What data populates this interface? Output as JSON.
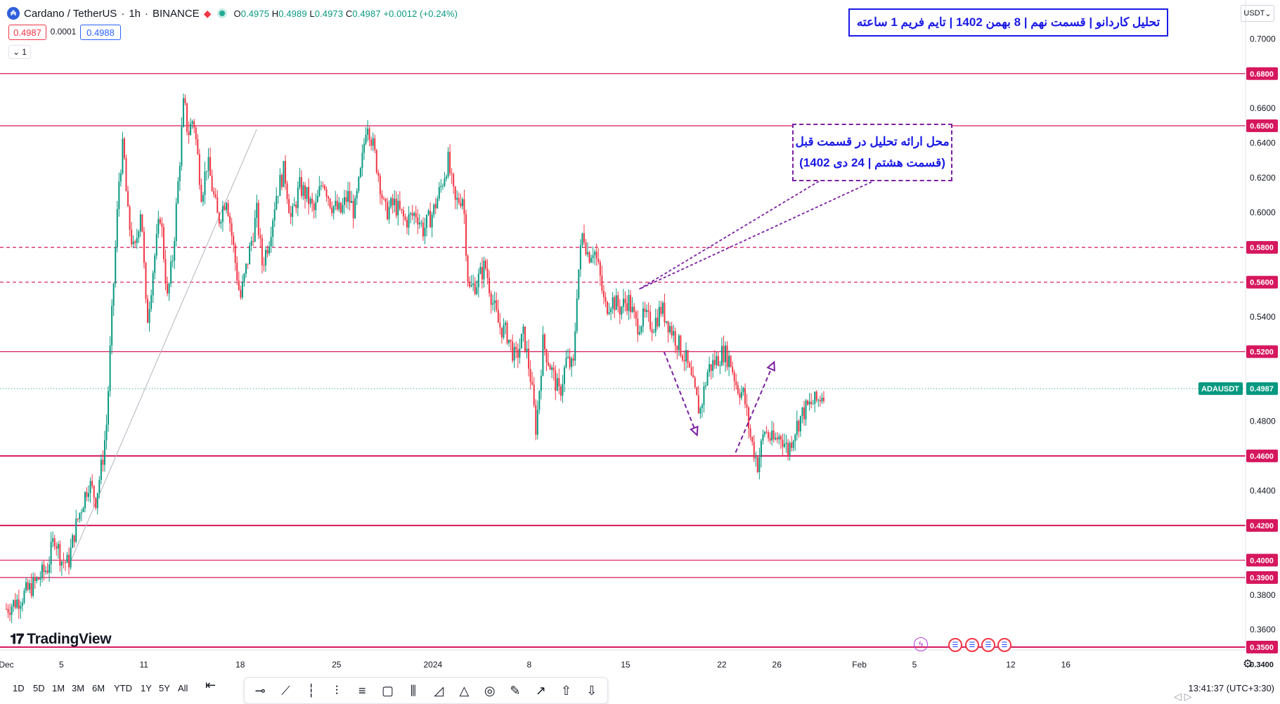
{
  "header": {
    "symbol": "Cardano / TetherUS",
    "interval": "1h",
    "exchange": "BINANCE",
    "o_label": "O",
    "o_value": "0.4975",
    "h_label": "H",
    "h_value": "0.4989",
    "l_label": "L",
    "l_value": "0.4973",
    "c_label": "C",
    "c_value": "0.4987",
    "change": "+0.0012 (+0.24%)",
    "sell_price": "0.4987",
    "spread": "0.0001",
    "buy_price": "0.4988",
    "indicators_count": "1",
    "currency": "USDT"
  },
  "annotations": {
    "title": "تحلیل کاردانو | قسمت نهم | 8 بهمن 1402 | تایم فریم 1 ساعته",
    "note_line1": "محل ارائه تحلیل در قسمت قبل",
    "note_line2": "(قسمت هشتم | 24 دی 1402)"
  },
  "branding": {
    "logo": "TradingView"
  },
  "chart_data": {
    "type": "candlestick",
    "symbol_label": "ADAUSDT",
    "last_price": "0.4987",
    "ylim": [
      0.34,
      0.705
    ],
    "y_ticks": [
      "0.7000",
      "0.6600",
      "0.6400",
      "0.6200",
      "0.6000",
      "0.5400",
      "0.4800",
      "0.4400",
      "0.3800",
      "0.3600"
    ],
    "x_ticks": [
      "Dec",
      "5",
      "11",
      "18",
      "25",
      "2024",
      "8",
      "15",
      "22",
      "26",
      "Feb",
      "5",
      "12",
      "16"
    ],
    "x_tick_days": [
      1,
      5,
      11,
      18,
      25,
      32,
      39,
      46,
      53,
      57,
      63,
      67,
      74,
      78
    ],
    "xlim_days": [
      1,
      82
    ],
    "levels": [
      {
        "price": 0.68,
        "label": "0.6800",
        "style": "solid"
      },
      {
        "price": 0.65,
        "label": "0.6500",
        "style": "solid"
      },
      {
        "price": 0.58,
        "label": "0.5800",
        "style": "dashed"
      },
      {
        "price": 0.56,
        "label": "0.5600",
        "style": "dashed"
      },
      {
        "price": 0.52,
        "label": "0.5200",
        "style": "solid"
      },
      {
        "price": 0.46,
        "label": "0.4600",
        "style": "solid-thick"
      },
      {
        "price": 0.42,
        "label": "0.4200",
        "style": "solid-thick"
      },
      {
        "price": 0.4,
        "label": "0.4000",
        "style": "solid"
      },
      {
        "price": 0.39,
        "label": "0.3900",
        "style": "solid"
      },
      {
        "price": 0.35,
        "label": "0.3500",
        "style": "solid-thick"
      },
      {
        "price": 0.34,
        "label": "0.3400",
        "style": "none"
      }
    ],
    "price_path": [
      [
        1,
        0.372
      ],
      [
        2,
        0.378
      ],
      [
        3,
        0.386
      ],
      [
        4,
        0.396
      ],
      [
        4.5,
        0.414
      ],
      [
        5,
        0.4
      ],
      [
        5.5,
        0.398
      ],
      [
        6,
        0.418
      ],
      [
        6.5,
        0.432
      ],
      [
        7,
        0.445
      ],
      [
        7.5,
        0.435
      ],
      [
        8,
        0.458
      ],
      [
        8.3,
        0.48
      ],
      [
        8.6,
        0.53
      ],
      [
        8.9,
        0.575
      ],
      [
        9.2,
        0.62
      ],
      [
        9.5,
        0.64
      ],
      [
        9.8,
        0.6
      ],
      [
        10.3,
        0.575
      ],
      [
        10.8,
        0.605
      ],
      [
        11.2,
        0.535
      ],
      [
        11.7,
        0.57
      ],
      [
        12.2,
        0.6
      ],
      [
        12.7,
        0.55
      ],
      [
        13.1,
        0.575
      ],
      [
        13.6,
        0.63
      ],
      [
        13.9,
        0.665
      ],
      [
        14.2,
        0.645
      ],
      [
        14.6,
        0.655
      ],
      [
        15.2,
        0.61
      ],
      [
        15.6,
        0.63
      ],
      [
        16.4,
        0.595
      ],
      [
        17,
        0.61
      ],
      [
        17.5,
        0.58
      ],
      [
        18,
        0.55
      ],
      [
        18.6,
        0.575
      ],
      [
        19.2,
        0.6
      ],
      [
        19.6,
        0.57
      ],
      [
        20.1,
        0.585
      ],
      [
        20.6,
        0.61
      ],
      [
        21.2,
        0.625
      ],
      [
        21.7,
        0.595
      ],
      [
        22.3,
        0.615
      ],
      [
        22.8,
        0.61
      ],
      [
        23.4,
        0.6
      ],
      [
        24,
        0.62
      ],
      [
        24.6,
        0.605
      ],
      [
        25.3,
        0.6
      ],
      [
        25.8,
        0.61
      ],
      [
        26.3,
        0.6
      ],
      [
        26.8,
        0.625
      ],
      [
        27.2,
        0.655
      ],
      [
        27.6,
        0.64
      ],
      [
        28.1,
        0.62
      ],
      [
        28.5,
        0.6
      ],
      [
        29.2,
        0.605
      ],
      [
        30,
        0.595
      ],
      [
        30.8,
        0.6
      ],
      [
        31.3,
        0.59
      ],
      [
        32,
        0.6
      ],
      [
        32.6,
        0.615
      ],
      [
        33.1,
        0.63
      ],
      [
        33.6,
        0.605
      ],
      [
        34.2,
        0.61
      ],
      [
        34.6,
        0.555
      ],
      [
        35.2,
        0.56
      ],
      [
        35.8,
        0.57
      ],
      [
        36.3,
        0.55
      ],
      [
        36.8,
        0.535
      ],
      [
        37.4,
        0.53
      ],
      [
        38,
        0.515
      ],
      [
        38.6,
        0.53
      ],
      [
        39.1,
        0.505
      ],
      [
        39.5,
        0.475
      ],
      [
        40,
        0.525
      ],
      [
        40.6,
        0.51
      ],
      [
        41.2,
        0.495
      ],
      [
        41.7,
        0.515
      ],
      [
        42.2,
        0.51
      ],
      [
        42.5,
        0.56
      ],
      [
        42.9,
        0.59
      ],
      [
        43.3,
        0.575
      ],
      [
        43.7,
        0.58
      ],
      [
        44.1,
        0.565
      ],
      [
        44.5,
        0.545
      ],
      [
        45,
        0.55
      ],
      [
        45.6,
        0.545
      ],
      [
        46.2,
        0.55
      ],
      [
        46.8,
        0.535
      ],
      [
        47.4,
        0.54
      ],
      [
        48,
        0.535
      ],
      [
        48.6,
        0.545
      ],
      [
        49.2,
        0.535
      ],
      [
        49.8,
        0.525
      ],
      [
        50.4,
        0.515
      ],
      [
        50.9,
        0.5
      ],
      [
        51.4,
        0.485
      ],
      [
        52,
        0.51
      ],
      [
        52.6,
        0.515
      ],
      [
        53.1,
        0.52
      ],
      [
        53.6,
        0.515
      ],
      [
        54.1,
        0.5
      ],
      [
        54.6,
        0.495
      ],
      [
        55.1,
        0.47
      ],
      [
        55.6,
        0.455
      ],
      [
        56.1,
        0.475
      ],
      [
        56.7,
        0.468
      ],
      [
        57.3,
        0.472
      ],
      [
        57.8,
        0.463
      ],
      [
        58.3,
        0.475
      ],
      [
        58.9,
        0.485
      ],
      [
        59.5,
        0.49
      ],
      [
        60,
        0.492
      ],
      [
        60.5,
        0.4987
      ]
    ],
    "arrows": [
      {
        "from": [
          48.8,
          0.52
        ],
        "to": [
          51.2,
          0.472
        ]
      },
      {
        "from": [
          54.0,
          0.462
        ],
        "to": [
          56.8,
          0.514
        ]
      }
    ],
    "note_pointer": {
      "tip": [
        47.0,
        0.556
      ]
    },
    "trendline": {
      "from": [
        5.6,
        0.398
      ],
      "to": [
        19.2,
        0.648
      ]
    }
  },
  "bottom_bar": {
    "timeframes": [
      "1D",
      "5D",
      "1M",
      "3M",
      "6M",
      "YTD",
      "1Y",
      "5Y",
      "All"
    ],
    "clock": "13:41:37 (UTC+3:30)"
  },
  "drawing_tools": [
    "horizontal-ray-icon",
    "trend-line-icon",
    "vertical-line-icon",
    "parallel-channel-icon",
    "regression-icon",
    "rectangle-icon",
    "fib-icon",
    "long-position-icon",
    "triangle-pattern-icon",
    "circle-icon",
    "brush-icon",
    "arrow-icon",
    "arrow-up-icon",
    "arrow-down-icon"
  ],
  "colors": {
    "up": "#089981",
    "down": "#f23645",
    "level": "#d6175d",
    "accent": "#2962ff",
    "annotation": "#7b1fa2",
    "title": "#1a1ae6"
  }
}
